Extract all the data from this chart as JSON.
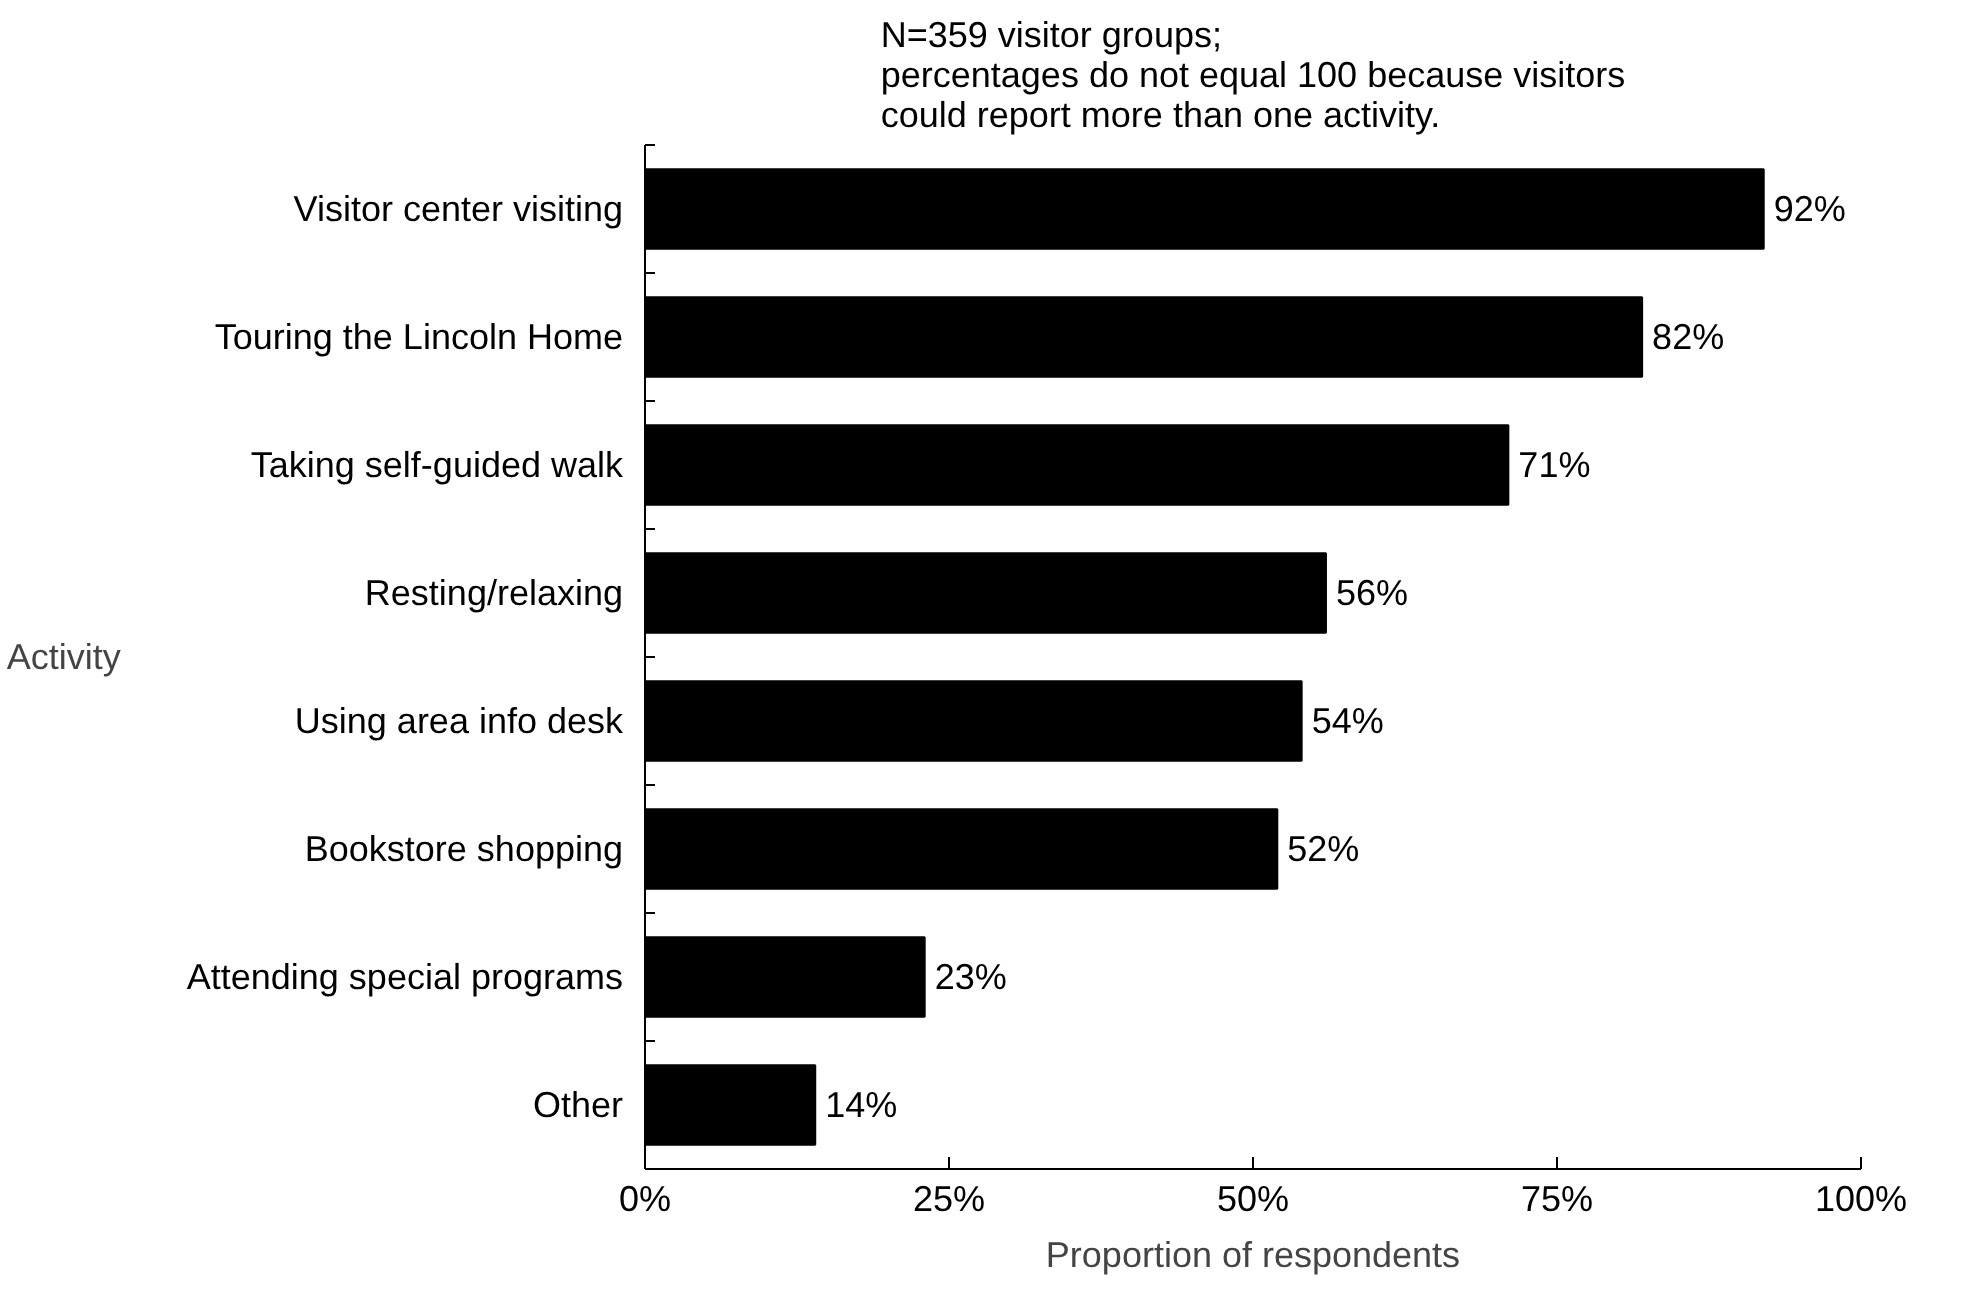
{
  "chart_data": {
    "type": "bar",
    "orientation": "horizontal",
    "annotations": [
      "N=359 visitor groups; percentages do not equal 100 because visitors could report more than one activity."
    ],
    "ylabel": "Activity",
    "xlabel": "Proportion of respondents",
    "categories": [
      "Visitor center visiting",
      "Touring the Lincoln Home",
      "Taking self-guided walk",
      "Resting/relaxing",
      "Using area info desk",
      "Bookstore shopping",
      "Attending special programs",
      "Other"
    ],
    "values": [
      92,
      82,
      71,
      56,
      54,
      52,
      23,
      14
    ],
    "value_labels": [
      "92%",
      "82%",
      "71%",
      "56%",
      "54%",
      "52%",
      "23%",
      "14%"
    ],
    "color": "#000000",
    "xlim": [
      0,
      100
    ],
    "xticks": [
      {
        "value": 0,
        "label": "0%"
      },
      {
        "value": 25,
        "label": "25%"
      },
      {
        "value": 50,
        "label": "50%"
      },
      {
        "value": 75,
        "label": "75%"
      },
      {
        "value": 100,
        "label": "100%"
      }
    ],
    "grid": false
  }
}
